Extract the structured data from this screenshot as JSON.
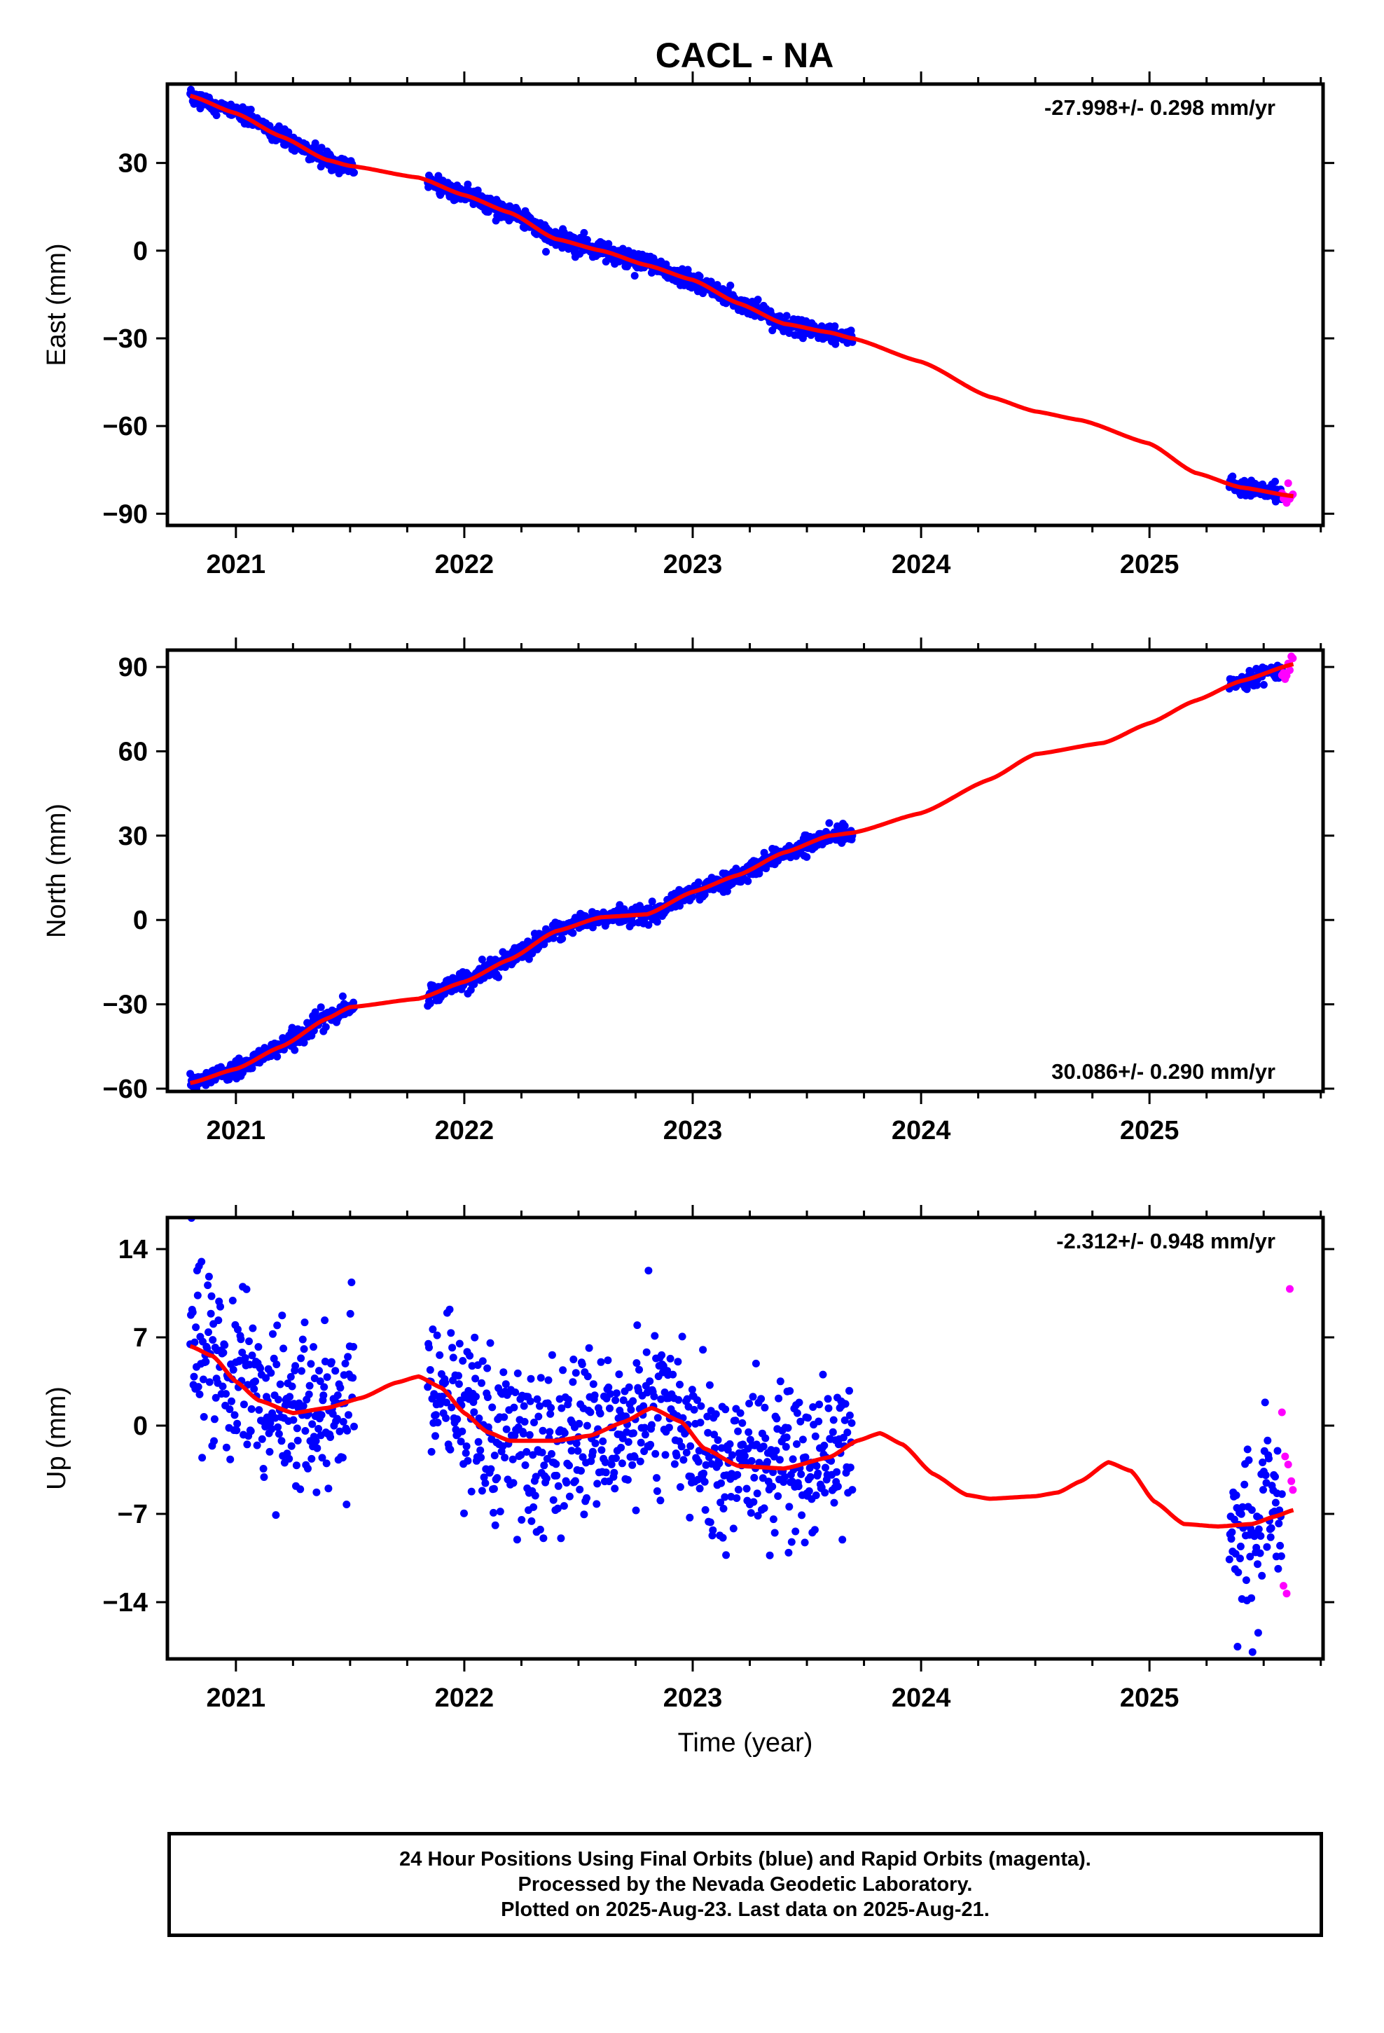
{
  "title": "CACL - NA",
  "colors": {
    "final_orbits": "#0000ff",
    "rapid_orbits": "#ff00ff",
    "model_fit": "#ff0000",
    "frame": "#000000",
    "background": "#ffffff"
  },
  "chart_data": [
    {
      "type": "scatter",
      "ylabel": "East (mm)",
      "xlabel": "",
      "xlim": [
        2020.7,
        2025.76
      ],
      "ylim": [
        -94,
        57
      ],
      "yticks": [
        "30",
        "0",
        "−30",
        "−60",
        "−90"
      ],
      "ytick_values": [
        30,
        0,
        -30,
        -60,
        -90
      ],
      "xticks": [
        "2021",
        "2022",
        "2023",
        "2024",
        "2025"
      ],
      "xtick_values": [
        2021,
        2022,
        2023,
        2024,
        2025
      ],
      "rate_label": "-27.998+/- 0.298 mm/yr",
      "rate_position": "top-right",
      "final_orbit_segments": [
        [
          2020.8,
          2021.52
        ],
        [
          2021.84,
          2023.7
        ],
        [
          2025.35,
          2025.58
        ]
      ],
      "rapid_orbit_segment": [
        2025.58,
        2025.63
      ],
      "scatter_sd": 1.5,
      "model_curve": [
        [
          2020.8,
          53
        ],
        [
          2021.0,
          47
        ],
        [
          2021.2,
          39
        ],
        [
          2021.4,
          31
        ],
        [
          2021.5,
          29
        ],
        [
          2021.8,
          25
        ],
        [
          2022.0,
          19
        ],
        [
          2022.2,
          13
        ],
        [
          2022.4,
          4
        ],
        [
          2022.6,
          0
        ],
        [
          2022.8,
          -5
        ],
        [
          2023.0,
          -10
        ],
        [
          2023.2,
          -18
        ],
        [
          2023.4,
          -25
        ],
        [
          2023.6,
          -28
        ],
        [
          2023.7,
          -30
        ],
        [
          2024.0,
          -38
        ],
        [
          2024.3,
          -50
        ],
        [
          2024.5,
          -55
        ],
        [
          2024.7,
          -58
        ],
        [
          2025.0,
          -66
        ],
        [
          2025.2,
          -76
        ],
        [
          2025.4,
          -81
        ],
        [
          2025.63,
          -84
        ]
      ]
    },
    {
      "type": "scatter",
      "ylabel": "North (mm)",
      "xlabel": "",
      "xlim": [
        2020.7,
        2025.76
      ],
      "ylim": [
        -61,
        96
      ],
      "yticks": [
        "90",
        "60",
        "30",
        "0",
        "−30",
        "−60"
      ],
      "ytick_values": [
        90,
        60,
        30,
        0,
        -30,
        -60
      ],
      "xticks": [
        "2021",
        "2022",
        "2023",
        "2024",
        "2025"
      ],
      "xtick_values": [
        2021,
        2022,
        2023,
        2024,
        2025
      ],
      "rate_label": "30.086+/- 0.290 mm/yr",
      "rate_position": "bottom-right",
      "final_orbit_segments": [
        [
          2020.8,
          2021.52
        ],
        [
          2021.84,
          2023.7
        ],
        [
          2025.35,
          2025.58
        ]
      ],
      "rapid_orbit_segment": [
        2025.58,
        2025.63
      ],
      "scatter_sd": 1.6,
      "model_curve": [
        [
          2020.8,
          -58
        ],
        [
          2021.0,
          -53
        ],
        [
          2021.2,
          -45
        ],
        [
          2021.4,
          -35
        ],
        [
          2021.5,
          -31
        ],
        [
          2021.8,
          -28
        ],
        [
          2022.0,
          -22
        ],
        [
          2022.2,
          -14
        ],
        [
          2022.4,
          -4
        ],
        [
          2022.6,
          1
        ],
        [
          2022.8,
          2
        ],
        [
          2023.0,
          10
        ],
        [
          2023.2,
          16
        ],
        [
          2023.4,
          24
        ],
        [
          2023.6,
          30
        ],
        [
          2023.7,
          31
        ],
        [
          2024.0,
          38
        ],
        [
          2024.3,
          50
        ],
        [
          2024.5,
          59
        ],
        [
          2024.8,
          63
        ],
        [
          2025.0,
          70
        ],
        [
          2025.2,
          78
        ],
        [
          2025.4,
          85
        ],
        [
          2025.63,
          91
        ]
      ]
    },
    {
      "type": "scatter",
      "ylabel": "Up (mm)",
      "xlabel": "Time (year)",
      "xlim": [
        2020.7,
        2025.76
      ],
      "ylim": [
        -18.5,
        16.5
      ],
      "yticks": [
        "14",
        "7",
        "0",
        "−7",
        "−14"
      ],
      "ytick_values": [
        14,
        7,
        0,
        -7,
        -14
      ],
      "xticks": [
        "2021",
        "2022",
        "2023",
        "2024",
        "2025"
      ],
      "xtick_values": [
        2021,
        2022,
        2023,
        2024,
        2025
      ],
      "rate_label": "-2.312+/- 0.948 mm/yr",
      "rate_position": "top-right",
      "final_orbit_segments": [
        [
          2020.8,
          2021.52
        ],
        [
          2021.84,
          2023.7
        ],
        [
          2025.35,
          2025.58
        ]
      ],
      "rapid_orbit_segment": [
        2025.58,
        2025.63
      ],
      "scatter_sd": 3.3,
      "model_curve": [
        [
          2020.8,
          6.3
        ],
        [
          2020.9,
          5.5
        ],
        [
          2021.0,
          3.5
        ],
        [
          2021.1,
          2.0
        ],
        [
          2021.25,
          1.0
        ],
        [
          2021.4,
          1.4
        ],
        [
          2021.55,
          2.2
        ],
        [
          2021.7,
          3.4
        ],
        [
          2021.8,
          3.9
        ],
        [
          2021.9,
          3.0
        ],
        [
          2022.0,
          1.0
        ],
        [
          2022.1,
          -0.5
        ],
        [
          2022.2,
          -1.2
        ],
        [
          2022.4,
          -1.2
        ],
        [
          2022.55,
          -0.8
        ],
        [
          2022.7,
          0.3
        ],
        [
          2022.82,
          1.4
        ],
        [
          2022.95,
          0.3
        ],
        [
          2023.05,
          -1.8
        ],
        [
          2023.2,
          -3.2
        ],
        [
          2023.4,
          -3.4
        ],
        [
          2023.6,
          -2.5
        ],
        [
          2023.72,
          -1.2
        ],
        [
          2023.82,
          -0.6
        ],
        [
          2023.92,
          -1.5
        ],
        [
          2024.05,
          -3.8
        ],
        [
          2024.2,
          -5.5
        ],
        [
          2024.3,
          -5.8
        ],
        [
          2024.5,
          -5.6
        ],
        [
          2024.6,
          -5.3
        ],
        [
          2024.7,
          -4.4
        ],
        [
          2024.82,
          -2.9
        ],
        [
          2024.92,
          -3.6
        ],
        [
          2025.02,
          -6.0
        ],
        [
          2025.15,
          -7.8
        ],
        [
          2025.3,
          -8.0
        ],
        [
          2025.45,
          -7.8
        ],
        [
          2025.55,
          -7.2
        ],
        [
          2025.63,
          -6.7
        ]
      ]
    }
  ],
  "footer": {
    "line1": "24 Hour Positions Using Final Orbits (blue) and Rapid Orbits (magenta).",
    "line2": "Processed by the Nevada Geodetic Laboratory.",
    "line3": "Plotted on 2025-Aug-23. Last data on 2025-Aug-21."
  }
}
